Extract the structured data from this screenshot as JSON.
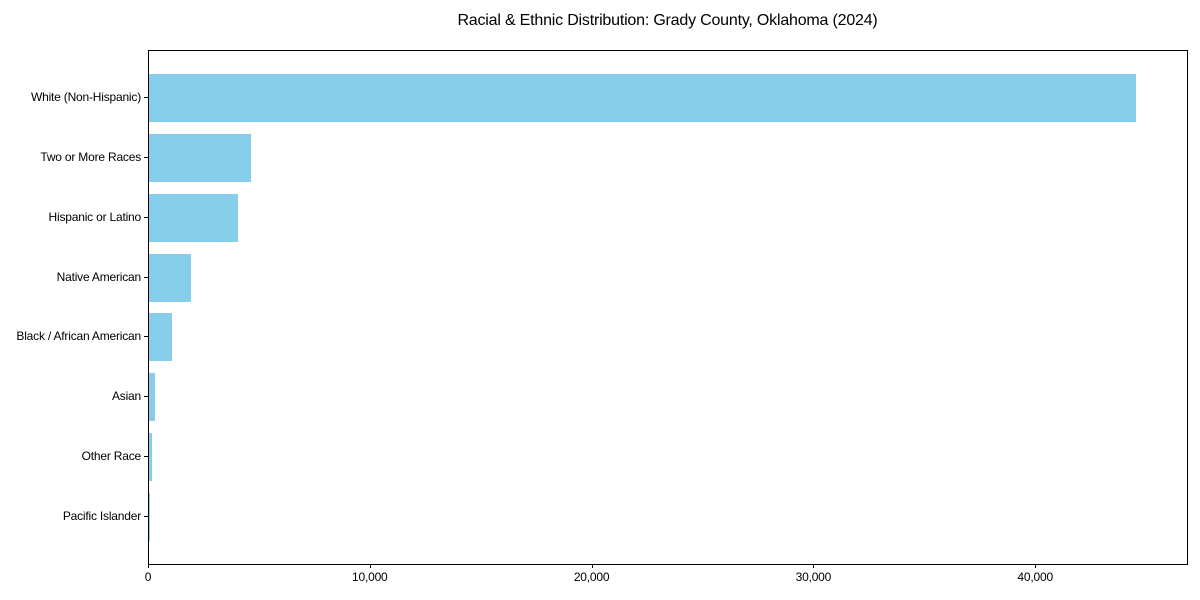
{
  "chart_data": {
    "type": "bar",
    "orientation": "horizontal",
    "title": "Racial & Ethnic Distribution: Grady County, Oklahoma (2024)",
    "categories": [
      "White (Non-Hispanic)",
      "Two or More Races",
      "Hispanic or Latino",
      "Native American",
      "Black / African American",
      "Asian",
      "Other Race",
      "Pacific Islander"
    ],
    "values": [
      44500,
      4600,
      4000,
      1900,
      1050,
      260,
      140,
      30
    ],
    "xlabel": "",
    "ylabel": "",
    "xlim": [
      0,
      46800
    ],
    "x_ticks": [
      0,
      10000,
      20000,
      30000,
      40000
    ],
    "x_tick_labels": [
      "0",
      "10,000",
      "20,000",
      "30,000",
      "40,000"
    ],
    "grid": false,
    "legend": null,
    "bar_color": "#87CEEB",
    "axis_color": "#000000",
    "text_color": "#000000",
    "background_color": "#ffffff"
  }
}
